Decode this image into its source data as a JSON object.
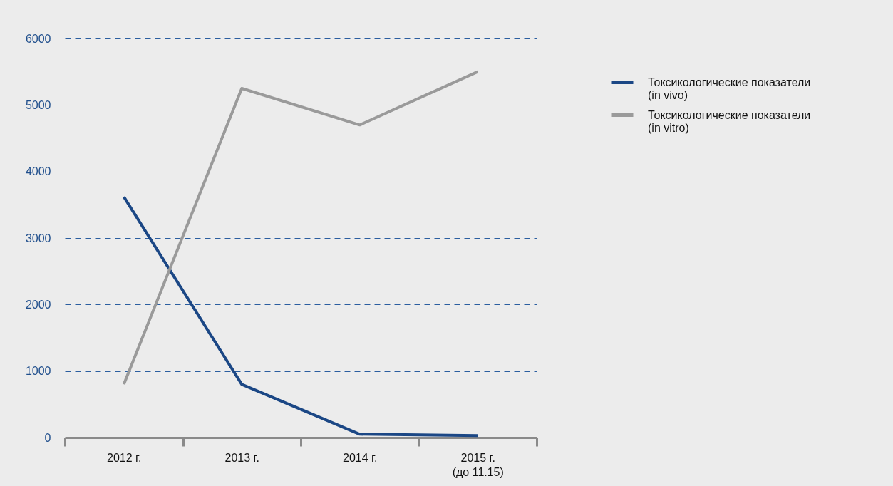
{
  "chart_data": {
    "type": "line",
    "categories": [
      "2012 г.",
      "2013 г.",
      "2014 г.",
      "2015 г.\n(до 11.15)"
    ],
    "series": [
      {
        "name": "Токсикологические показатели (in vivo)",
        "color": "#1b4785",
        "values": [
          3620,
          800,
          50,
          30
        ]
      },
      {
        "name": "Токсикологические показатели (in vitro)",
        "color": "#9a9a9a",
        "values": [
          800,
          5250,
          4700,
          5500
        ]
      }
    ],
    "ylim": [
      0,
      6000
    ],
    "yticks": [
      0,
      1000,
      2000,
      3000,
      4000,
      5000,
      6000
    ],
    "grid": "y",
    "legend": "top right",
    "marker": "none"
  }
}
